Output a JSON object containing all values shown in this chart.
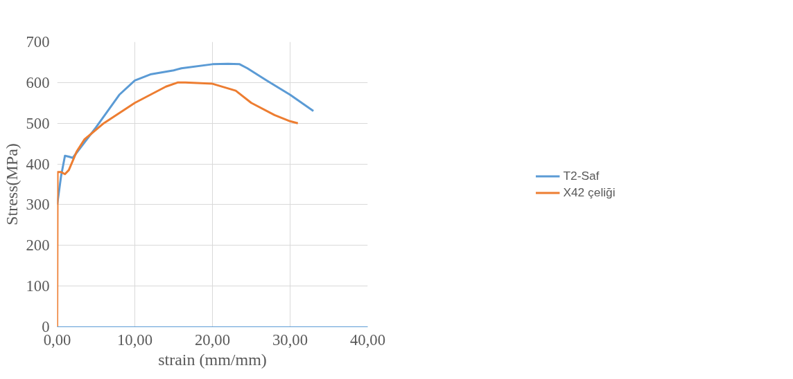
{
  "chart_data": {
    "type": "line",
    "xlabel": "strain (mm/mm)",
    "ylabel": "Stress(MPa)",
    "xlim": [
      0,
      40
    ],
    "ylim": [
      0,
      700
    ],
    "xticks": [
      {
        "value": 0,
        "label": "0,00"
      },
      {
        "value": 10,
        "label": "10,00"
      },
      {
        "value": 20,
        "label": "20,00"
      },
      {
        "value": 30,
        "label": "30,00"
      },
      {
        "value": 40,
        "label": "40,00"
      }
    ],
    "yticks": [
      0,
      100,
      200,
      300,
      400,
      500,
      600,
      700
    ],
    "grid": true,
    "legend": "right",
    "marker": "none",
    "line_style": "solid",
    "series": [
      {
        "name": "T2-Saf",
        "color": "#5b9bd5",
        "x": [
          0,
          0.5,
          1,
          1.5,
          2,
          3,
          5,
          8,
          10,
          12,
          15,
          16,
          20,
          22,
          23.5,
          24.5,
          27,
          30,
          33
        ],
        "values": [
          300,
          370,
          420,
          418,
          415,
          440,
          490,
          570,
          605,
          620,
          630,
          635,
          645,
          646,
          645,
          635,
          605,
          570,
          530
        ]
      },
      {
        "name": "X42 çeliği",
        "color": "#ed7d31",
        "x": [
          0,
          0.05,
          0.5,
          1,
          1.5,
          2.5,
          3.5,
          6,
          10,
          12,
          14,
          15.5,
          16.5,
          20,
          23,
          25,
          28,
          30,
          31
        ],
        "values": [
          0,
          380,
          380,
          375,
          385,
          430,
          460,
          500,
          550,
          570,
          590,
          600,
          600,
          597,
          580,
          550,
          520,
          505,
          500
        ]
      }
    ]
  }
}
